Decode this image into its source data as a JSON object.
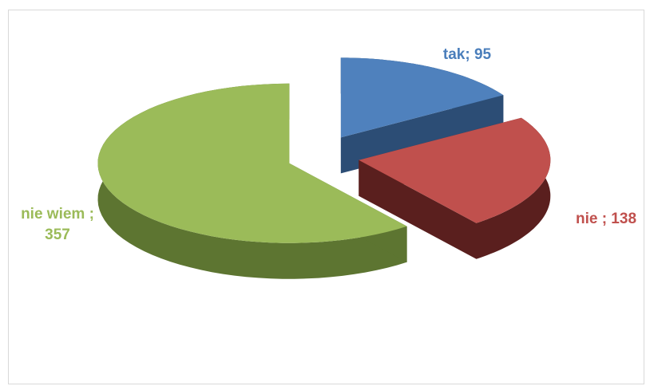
{
  "chart_data": {
    "type": "pie3d",
    "values": [
      95,
      138,
      357
    ],
    "value_labels": [
      "tak; 95",
      "nie ; 138",
      "nie wiem ; 357"
    ],
    "colors": [
      "#4f81bd",
      "#c0504d",
      "#9bbb59"
    ],
    "side_colors": [
      "#2c4d75",
      "#5a1f1e",
      "#5d7531"
    ],
    "label_colors": [
      "#4a7ebb",
      "#c0504d",
      "#9bbb59"
    ]
  }
}
